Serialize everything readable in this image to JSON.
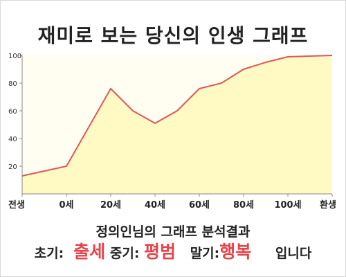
{
  "title": "재미로 보는 당신의 인생 그래프",
  "chart_data": {
    "type": "area",
    "title": "재미로 보는 당신의 인생 그래프",
    "xlabel": "",
    "ylabel": "",
    "x_ticks": [
      "전생",
      "0세",
      "20세",
      "40세",
      "60세",
      "80세",
      "100세",
      "환생"
    ],
    "x_tick_positions": [
      -20,
      0,
      20,
      40,
      60,
      80,
      100,
      120
    ],
    "y_ticks": [
      20,
      40,
      60,
      80,
      100
    ],
    "ylim": [
      0,
      100
    ],
    "xlim": [
      -20,
      120
    ],
    "grid": false,
    "legend": "none",
    "series": [
      {
        "x": [
          -20,
          0,
          20,
          30,
          40,
          50,
          60,
          70,
          80,
          90,
          100,
          110,
          120
        ],
        "values": [
          13,
          20,
          76,
          60,
          51,
          60,
          76,
          80,
          90,
          95,
          99,
          99.5,
          100
        ]
      }
    ],
    "line_color": "#e0555a",
    "fill_color": "#fff9c4"
  },
  "analysis": "정의인님의 그래프 분석결과",
  "result": {
    "early_label": "초기:",
    "early_value": "출세",
    "mid_label": "중기:",
    "mid_value": "평범",
    "late_label": "말기:",
    "late_value": "행복",
    "ending": "입니다"
  }
}
